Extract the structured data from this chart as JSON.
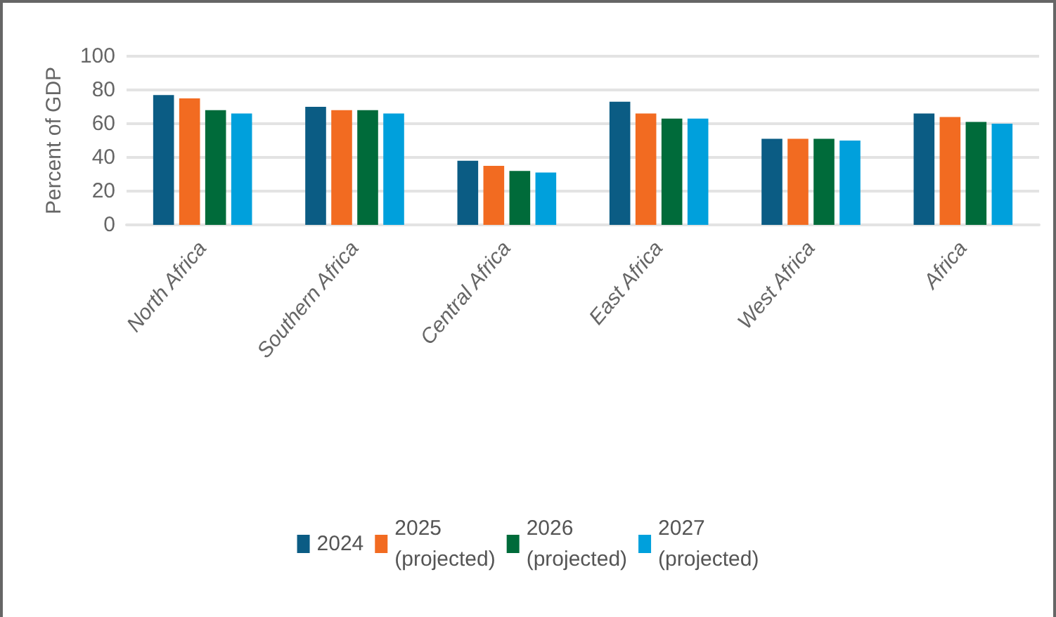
{
  "chart_data": {
    "type": "bar",
    "ylabel": "Percent of GDP",
    "categories": [
      "North Africa",
      "Southern Africa",
      "Central Africa",
      "East Africa",
      "West Africa",
      "Africa"
    ],
    "series": [
      {
        "name": "2024",
        "color": "#0b5c84",
        "values": [
          77,
          70,
          38,
          73,
          51,
          66
        ]
      },
      {
        "name": "2025 (projected)",
        "color": "#f26b21",
        "values": [
          75,
          68,
          35,
          66,
          51,
          64
        ]
      },
      {
        "name": "2026 (projected)",
        "color": "#006b3a",
        "values": [
          68,
          68,
          32,
          63,
          51,
          61
        ]
      },
      {
        "name": "2027 (projected)",
        "color": "#00a0dc",
        "values": [
          66,
          66,
          31,
          63,
          50,
          60
        ]
      }
    ],
    "ylim": [
      0,
      100
    ],
    "yticks": [
      0,
      20,
      40,
      60,
      80,
      100
    ],
    "grid": "y",
    "legend": "bottom"
  }
}
